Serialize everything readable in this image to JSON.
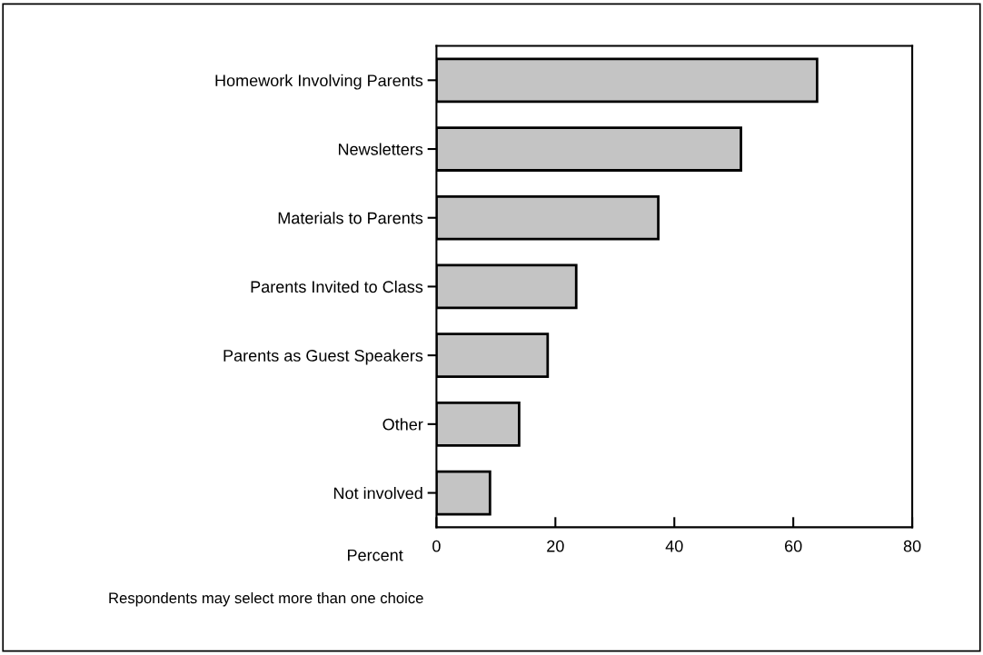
{
  "chart_data": {
    "type": "bar",
    "orientation": "horizontal",
    "categories": [
      "Homework Involving Parents",
      "Newsletters",
      "Materials to Parents",
      "Parents Invited to Class",
      "Parents as Guest Speakers",
      "Other",
      "Not involved"
    ],
    "values": [
      64,
      51.2,
      37.3,
      23.5,
      18.7,
      13.9,
      9
    ],
    "color": "#c4c4c4",
    "xlabel": "Percent",
    "xlim": [
      0,
      80
    ],
    "xticks": [
      0,
      20,
      40,
      60,
      80
    ],
    "grid": false,
    "annotations": [
      "Respondents may select more than one choice"
    ]
  }
}
